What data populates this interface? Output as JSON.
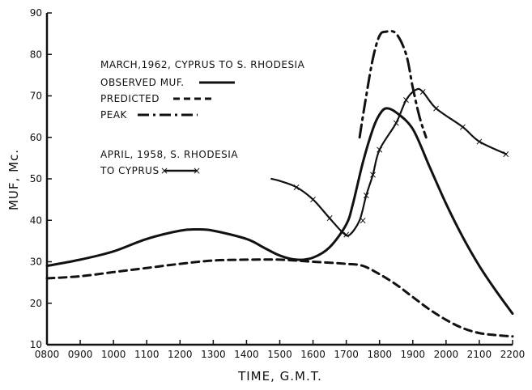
{
  "chart_data": {
    "type": "line",
    "xlabel": "TIME, G.M.T.",
    "ylabel": "MUF, Mc.",
    "xlim": [
      800,
      2200
    ],
    "ylim": [
      10,
      90
    ],
    "x_ticks": [
      "0800",
      "0900",
      "1000",
      "1100",
      "1200",
      "1300",
      "1400",
      "1500",
      "1600",
      "1700",
      "1800",
      "1900",
      "2000",
      "2100",
      "2200"
    ],
    "y_ticks": [
      "10",
      "20",
      "30",
      "40",
      "50",
      "60",
      "70",
      "80",
      "90"
    ],
    "grid": false,
    "legend": {
      "group1_title": "MARCH,1962, CYPRUS TO S. RHODESIA",
      "group2_title_line1": "APRIL, 1958, S. RHODESIA",
      "group2_title_line2": "TO CYPRUS"
    },
    "series": [
      {
        "name": "OBSERVED MUF.",
        "style": "solid",
        "points": [
          [
            800,
            29
          ],
          [
            900,
            30.5
          ],
          [
            1000,
            32.5
          ],
          [
            1100,
            35.5
          ],
          [
            1200,
            37.5
          ],
          [
            1250,
            37.8
          ],
          [
            1300,
            37.5
          ],
          [
            1400,
            35.5
          ],
          [
            1450,
            33.5
          ],
          [
            1500,
            31.5
          ],
          [
            1550,
            30.5
          ],
          [
            1600,
            31
          ],
          [
            1650,
            33.5
          ],
          [
            1700,
            39
          ],
          [
            1720,
            44
          ],
          [
            1750,
            54
          ],
          [
            1780,
            62
          ],
          [
            1800,
            65.5
          ],
          [
            1820,
            67
          ],
          [
            1850,
            66
          ],
          [
            1900,
            62
          ],
          [
            1950,
            53
          ],
          [
            2000,
            44
          ],
          [
            2050,
            36
          ],
          [
            2100,
            29
          ],
          [
            2150,
            23
          ],
          [
            2200,
            17.5
          ]
        ]
      },
      {
        "name": "PREDICTED",
        "style": "dashed",
        "points": [
          [
            800,
            26
          ],
          [
            900,
            26.5
          ],
          [
            1000,
            27.5
          ],
          [
            1100,
            28.5
          ],
          [
            1200,
            29.5
          ],
          [
            1300,
            30.3
          ],
          [
            1400,
            30.5
          ],
          [
            1500,
            30.5
          ],
          [
            1600,
            30
          ],
          [
            1700,
            29.5
          ],
          [
            1750,
            29
          ],
          [
            1800,
            27
          ],
          [
            1850,
            24.5
          ],
          [
            1900,
            21.5
          ],
          [
            1950,
            18.5
          ],
          [
            2000,
            16
          ],
          [
            2050,
            14
          ],
          [
            2100,
            12.8
          ],
          [
            2150,
            12.3
          ],
          [
            2200,
            12
          ]
        ]
      },
      {
        "name": "PEAK",
        "style": "dashdot",
        "points": [
          [
            1740,
            60
          ],
          [
            1760,
            70
          ],
          [
            1780,
            79
          ],
          [
            1800,
            84.5
          ],
          [
            1820,
            85.5
          ],
          [
            1850,
            85
          ],
          [
            1880,
            80
          ],
          [
            1900,
            72
          ],
          [
            1920,
            65
          ],
          [
            1940,
            60
          ]
        ]
      },
      {
        "name": "",
        "style": "cross",
        "points": [
          [
            1475,
            50
          ],
          [
            1500,
            49.5
          ],
          [
            1550,
            48
          ],
          [
            1600,
            45
          ],
          [
            1650,
            40.5
          ],
          [
            1690,
            37
          ],
          [
            1710,
            36.5
          ],
          [
            1740,
            40
          ],
          [
            1760,
            46
          ],
          [
            1780,
            51
          ],
          [
            1800,
            57
          ],
          [
            1850,
            63.5
          ],
          [
            1880,
            69
          ],
          [
            1910,
            71.5
          ],
          [
            1930,
            71
          ],
          [
            1970,
            67
          ],
          [
            2050,
            62.5
          ],
          [
            2100,
            59
          ],
          [
            2180,
            56
          ]
        ],
        "marked_points": [
          [
            1550,
            48
          ],
          [
            1600,
            45
          ],
          [
            1650,
            40.5
          ],
          [
            1700,
            36.5
          ],
          [
            1750,
            40
          ],
          [
            1760,
            46
          ],
          [
            1780,
            51
          ],
          [
            1800,
            57
          ],
          [
            1850,
            63.5
          ],
          [
            1880,
            69
          ],
          [
            1930,
            71
          ],
          [
            1970,
            67
          ],
          [
            2050,
            62.5
          ],
          [
            2100,
            59
          ],
          [
            2180,
            56
          ]
        ]
      }
    ]
  }
}
